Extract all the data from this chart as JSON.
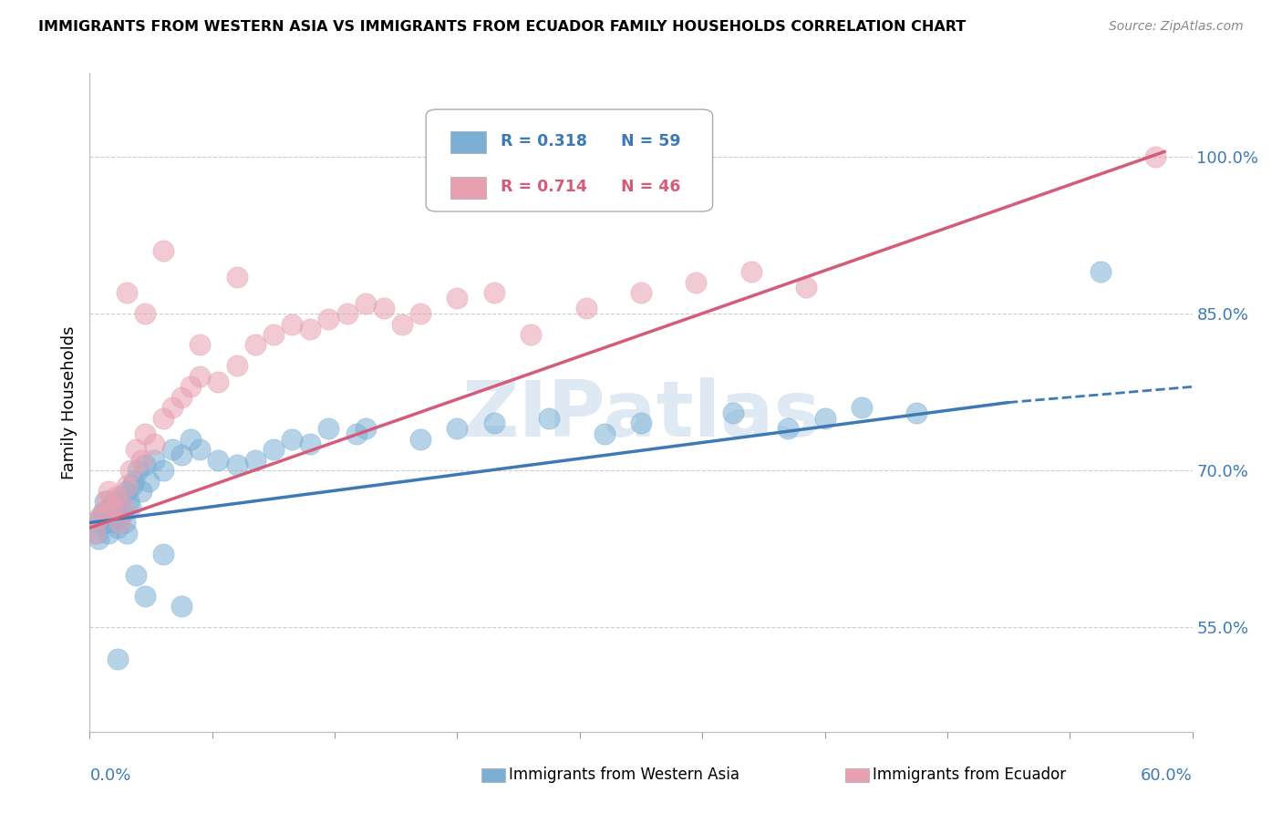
{
  "title": "IMMIGRANTS FROM WESTERN ASIA VS IMMIGRANTS FROM ECUADOR FAMILY HOUSEHOLDS CORRELATION CHART",
  "source": "Source: ZipAtlas.com",
  "ylabel": "Family Households",
  "xlim": [
    0.0,
    60.0
  ],
  "ylim": [
    45.0,
    108.0
  ],
  "yticks": [
    55.0,
    70.0,
    85.0,
    100.0
  ],
  "blue_color": "#7bafd4",
  "pink_color": "#e8a0b0",
  "blue_line_color": "#3d7ab5",
  "pink_line_color": "#d45c7a",
  "grid_color": "#cccccc",
  "legend_blue_r": "R = 0.318",
  "legend_blue_n": "N = 59",
  "legend_pink_r": "R = 0.714",
  "legend_pink_n": "N = 46",
  "blue_scatter_x": [
    0.3,
    0.4,
    0.5,
    0.6,
    0.7,
    0.8,
    0.9,
    1.0,
    1.1,
    1.2,
    1.3,
    1.4,
    1.5,
    1.6,
    1.7,
    1.8,
    1.9,
    2.0,
    2.1,
    2.2,
    2.3,
    2.4,
    2.6,
    2.8,
    3.0,
    3.2,
    3.5,
    4.0,
    4.5,
    5.0,
    5.5,
    6.0,
    7.0,
    8.0,
    9.0,
    10.0,
    11.0,
    12.0,
    13.0,
    14.5,
    15.0,
    18.0,
    20.0,
    22.0,
    25.0,
    28.0,
    30.0,
    35.0,
    38.0,
    40.0,
    42.0,
    45.0,
    2.5,
    3.0,
    4.0,
    5.0,
    1.5,
    55.0,
    2.0
  ],
  "blue_scatter_y": [
    65.0,
    64.0,
    63.5,
    65.5,
    66.0,
    67.0,
    65.0,
    64.0,
    66.5,
    65.0,
    67.0,
    66.0,
    64.5,
    65.5,
    67.5,
    66.0,
    65.0,
    68.0,
    67.0,
    66.5,
    68.5,
    69.0,
    70.0,
    68.0,
    70.5,
    69.0,
    71.0,
    70.0,
    72.0,
    71.5,
    73.0,
    72.0,
    71.0,
    70.5,
    71.0,
    72.0,
    73.0,
    72.5,
    74.0,
    73.5,
    74.0,
    73.0,
    74.0,
    74.5,
    75.0,
    73.5,
    74.5,
    75.5,
    74.0,
    75.0,
    76.0,
    75.5,
    60.0,
    58.0,
    62.0,
    57.0,
    52.0,
    89.0,
    64.0
  ],
  "pink_scatter_x": [
    0.3,
    0.5,
    0.7,
    0.9,
    1.0,
    1.2,
    1.4,
    1.6,
    1.8,
    2.0,
    2.2,
    2.5,
    2.8,
    3.0,
    3.5,
    4.0,
    4.5,
    5.0,
    5.5,
    6.0,
    7.0,
    8.0,
    9.0,
    10.0,
    11.0,
    12.0,
    13.0,
    14.0,
    15.0,
    16.0,
    17.0,
    18.0,
    20.0,
    22.0,
    24.0,
    27.0,
    30.0,
    33.0,
    36.0,
    39.0,
    2.0,
    3.0,
    4.0,
    6.0,
    8.0,
    58.0
  ],
  "pink_scatter_y": [
    64.0,
    65.5,
    66.0,
    67.0,
    68.0,
    66.5,
    67.5,
    65.0,
    66.5,
    68.5,
    70.0,
    72.0,
    71.0,
    73.5,
    72.5,
    75.0,
    76.0,
    77.0,
    78.0,
    79.0,
    78.5,
    80.0,
    82.0,
    83.0,
    84.0,
    83.5,
    84.5,
    85.0,
    86.0,
    85.5,
    84.0,
    85.0,
    86.5,
    87.0,
    83.0,
    85.5,
    87.0,
    88.0,
    89.0,
    87.5,
    87.0,
    85.0,
    91.0,
    82.0,
    88.5,
    100.0
  ],
  "blue_trend_x0": 0.0,
  "blue_trend_y0": 65.0,
  "blue_trend_x1": 50.0,
  "blue_trend_y1": 76.5,
  "blue_dash_x0": 50.0,
  "blue_dash_y0": 76.5,
  "blue_dash_x1": 60.0,
  "blue_dash_y1": 78.0,
  "pink_trend_x0": 0.0,
  "pink_trend_y0": 64.5,
  "pink_trend_x1": 58.5,
  "pink_trend_y1": 100.5
}
